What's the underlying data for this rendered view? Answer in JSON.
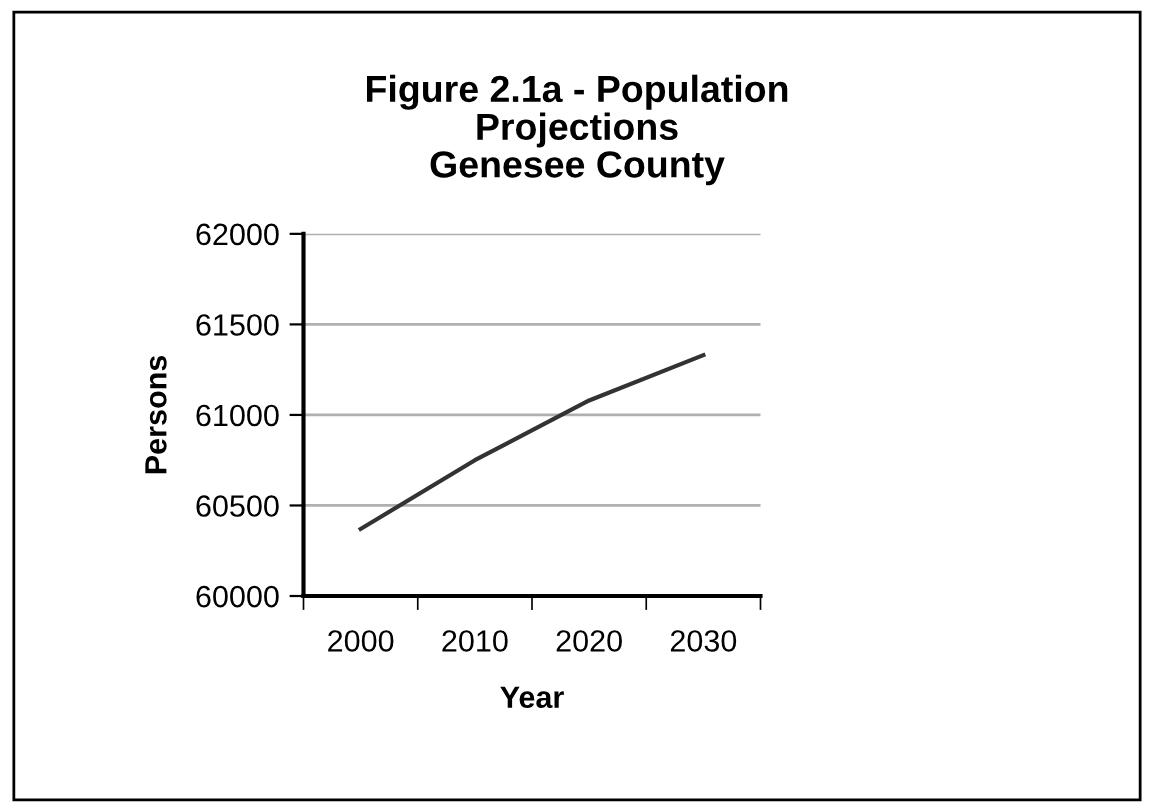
{
  "chart_data": {
    "type": "line",
    "title": "Figure 2.1a - Population\nProjections\nGenesee County",
    "xlabel": "Year",
    "ylabel": "Persons",
    "categories": [
      "2000",
      "2010",
      "2020",
      "2030"
    ],
    "series": [
      {
        "color": "#333333",
        "values": [
          60370,
          60750,
          61080,
          61330
        ]
      }
    ],
    "ylim": [
      60000,
      62000
    ],
    "yticks": [
      60000,
      60500,
      61000,
      61500,
      62000
    ],
    "grid": "y",
    "legend": false,
    "marker": "none",
    "line_style": "solid"
  }
}
